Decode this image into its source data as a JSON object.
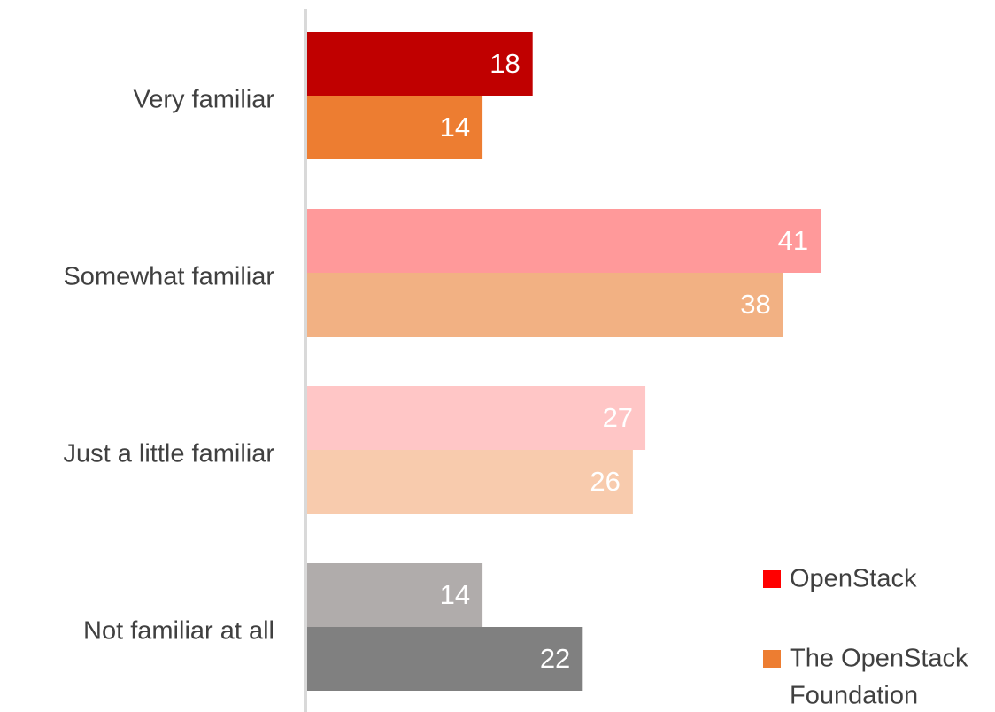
{
  "chart_data": {
    "type": "bar",
    "orientation": "horizontal",
    "categories": [
      "Very familiar",
      "Somewhat familiar",
      "Just a little familiar",
      "Not familiar at all"
    ],
    "series": [
      {
        "name": "OpenStack",
        "values": [
          18,
          41,
          27,
          14
        ]
      },
      {
        "name": "The OpenStack Foundation",
        "values": [
          14,
          38,
          26,
          22
        ]
      }
    ],
    "bar_colors": [
      [
        "#c00000",
        "#ed7d31"
      ],
      [
        "#ff999a",
        "#f2b183"
      ],
      [
        "#ffc6c6",
        "#f8cbad"
      ],
      [
        "#b0acab",
        "#808080"
      ]
    ],
    "legend": {
      "placement": "bottom-right",
      "items": [
        {
          "lines": [
            "OpenStack"
          ],
          "color": "#ff0000"
        },
        {
          "lines": [
            "The OpenStack",
            "Foundation"
          ],
          "color": "#ed7d31"
        }
      ]
    },
    "axis_color": "#d9d9d9",
    "xlim": [
      0,
      55
    ],
    "grid": false
  }
}
